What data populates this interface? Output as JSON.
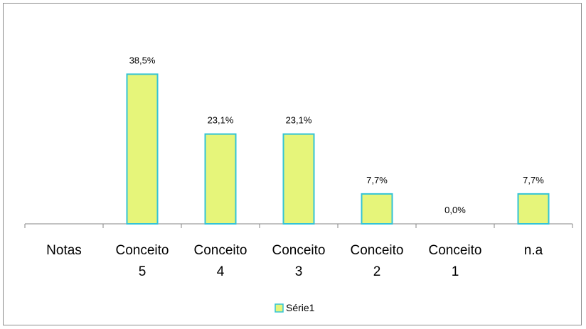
{
  "chart_data": {
    "type": "bar",
    "categories": [
      "Notas",
      "Conceito 5",
      "Conceito 4",
      "Conceito 3",
      "Conceito 2",
      "Conceito 1",
      "n.a"
    ],
    "series": [
      {
        "name": "Série1",
        "values": [
          null,
          38.5,
          23.1,
          23.1,
          7.7,
          0.0,
          7.7
        ],
        "labels": [
          "",
          "38,5%",
          "23,1%",
          "23,1%",
          "7,7%",
          "0,0%",
          "7,7%"
        ]
      }
    ],
    "ylim": [
      0,
      40
    ],
    "grid": false,
    "legend": "bottom",
    "colors": {
      "bar_fill": "#e6f57a",
      "bar_stroke": "#33c3d6",
      "axis": "#868686",
      "text": "#000000"
    }
  }
}
